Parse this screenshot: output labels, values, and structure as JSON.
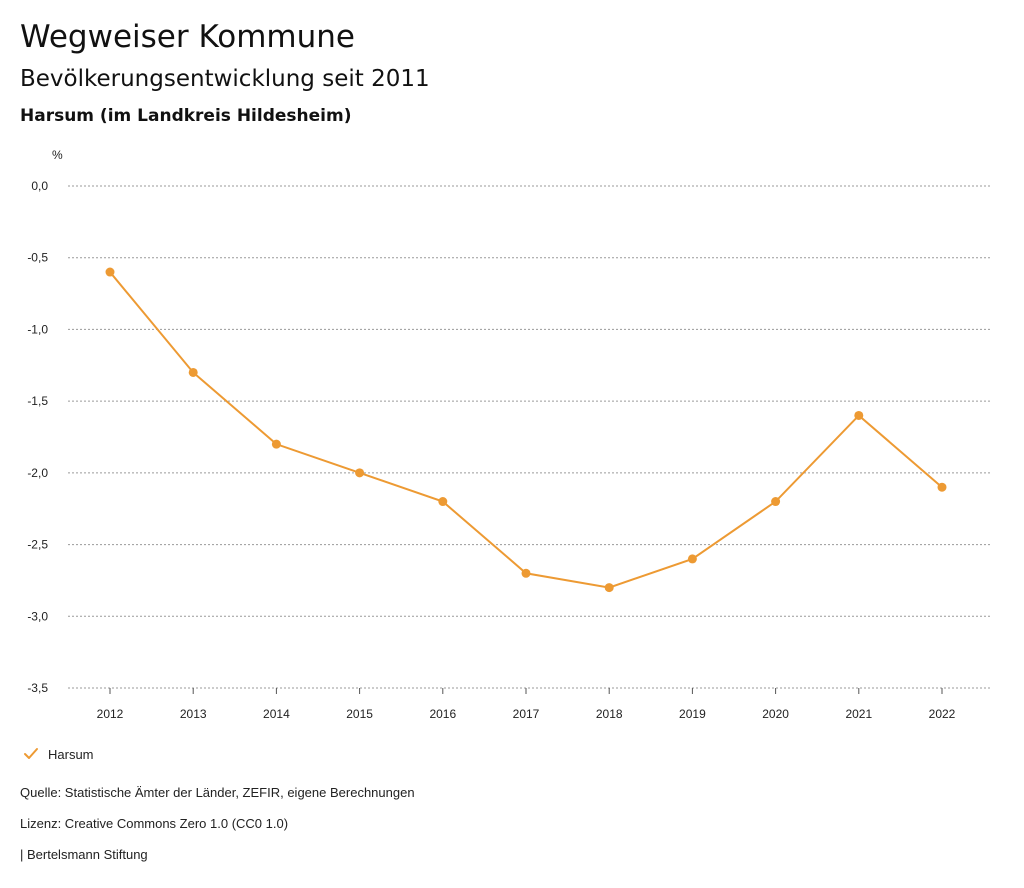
{
  "header": {
    "title": "Wegweiser Kommune",
    "subtitle": "Bevölkerungsentwicklung seit 2011",
    "region": "Harsum (im Landkreis Hildesheim)"
  },
  "chart_data": {
    "type": "line",
    "ylabel": "%",
    "xlabel": "",
    "x": [
      "2012",
      "2013",
      "2014",
      "2015",
      "2016",
      "2017",
      "2018",
      "2019",
      "2020",
      "2021",
      "2022"
    ],
    "series": [
      {
        "name": "Harsum",
        "values": [
          -0.6,
          -1.3,
          -1.8,
          -2.0,
          -2.2,
          -2.7,
          -2.8,
          -2.6,
          -2.2,
          -1.6,
          -2.1
        ]
      }
    ],
    "ylim": [
      -3.5,
      0.0
    ],
    "yticks": [
      "0,0",
      "-0,5",
      "-1,0",
      "-1,5",
      "-2,0",
      "-2,5",
      "-3,0",
      "-3,5"
    ],
    "grid": true,
    "legend": "bottom-left",
    "color": "#ED9A33"
  },
  "footer": {
    "source": "Quelle: Statistische Ämter der Länder, ZEFIR, eigene Berechnungen",
    "license": "Lizenz: Creative Commons Zero 1.0 (CC0 1.0)",
    "publisher": "| Bertelsmann Stiftung"
  }
}
